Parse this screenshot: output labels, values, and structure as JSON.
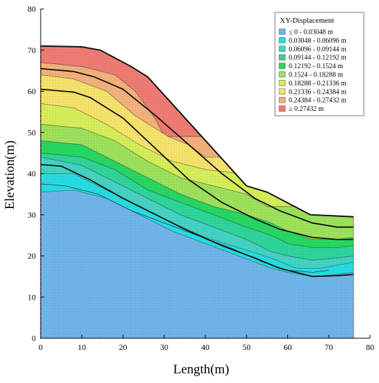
{
  "chart_data": {
    "type": "contour",
    "xlabel": "Length(m)",
    "ylabel": "Elevation(m)",
    "xlim": [
      0,
      80
    ],
    "ylim": [
      0,
      80
    ],
    "x_ticks": [
      0,
      10,
      20,
      30,
      40,
      50,
      60,
      70,
      80
    ],
    "y_ticks": [
      0,
      10,
      20,
      30,
      40,
      50,
      60,
      70,
      80
    ],
    "grid": false,
    "legend_position": "top-right",
    "legend": {
      "title": "XY-Displacement",
      "entries": [
        {
          "label": "≤ 0 - 0.03048 m",
          "color": "#6fb6ea"
        },
        {
          "label": "0.03048 - 0.06096 m",
          "color": "#27dde4"
        },
        {
          "label": "0.06096 - 0.09144 m",
          "color": "#45d3c4"
        },
        {
          "label": "0.09144 - 0.12192 m",
          "color": "#2fd59a"
        },
        {
          "label": "0.12192 - 0.1524 m",
          "color": "#27d861"
        },
        {
          "label": "0.1524 - 0.18288 m",
          "color": "#9ee25c"
        },
        {
          "label": "0.18288 - 0.21336 m",
          "color": "#d7ee5a"
        },
        {
          "label": "0.21336 - 0.24384 m",
          "color": "#f7e36c"
        },
        {
          "label": "0.24384 - 0.27432 m",
          "color": "#f3b27c"
        },
        {
          "label": "≥ 0.27432 m",
          "color": "#ef7c74"
        }
      ]
    },
    "slope_surface": [
      [
        0,
        71
      ],
      [
        10,
        70.8
      ],
      [
        14.5,
        70
      ],
      [
        22,
        66
      ],
      [
        26,
        63.5
      ],
      [
        50,
        37
      ],
      [
        55,
        35.5
      ],
      [
        65.5,
        30
      ],
      [
        76,
        29.5
      ],
      [
        76,
        0
      ],
      [
        0,
        0
      ]
    ],
    "bands": [
      {
        "level": 9,
        "boundary": [
          [
            0,
            67
          ],
          [
            10,
            66
          ],
          [
            18,
            64
          ],
          [
            23,
            60
          ],
          [
            28,
            53
          ],
          [
            30,
            49
          ]
        ]
      },
      {
        "level": 8,
        "boundary": [
          [
            0,
            64
          ],
          [
            8,
            63
          ],
          [
            16,
            60
          ],
          [
            23,
            54
          ],
          [
            31,
            49
          ],
          [
            36,
            47
          ],
          [
            40,
            44
          ]
        ]
      },
      {
        "level": 7,
        "boundary": [
          [
            0,
            57
          ],
          [
            8,
            56
          ],
          [
            16,
            52
          ],
          [
            24,
            47
          ],
          [
            32,
            43
          ],
          [
            40,
            41
          ],
          [
            48,
            40
          ],
          [
            54,
            37.5
          ]
        ]
      },
      {
        "level": 6,
        "boundary": [
          [
            0,
            52
          ],
          [
            10,
            51
          ],
          [
            18,
            48
          ],
          [
            26,
            43
          ],
          [
            34,
            39
          ],
          [
            42,
            37
          ],
          [
            50,
            35
          ],
          [
            55,
            32
          ],
          [
            58,
            32
          ]
        ]
      },
      {
        "level": 5,
        "boundary": [
          [
            0,
            48
          ],
          [
            10,
            47
          ],
          [
            18,
            43
          ],
          [
            26,
            39
          ],
          [
            34,
            35
          ],
          [
            42,
            32
          ],
          [
            50,
            30
          ],
          [
            56,
            28
          ],
          [
            60,
            26
          ],
          [
            66,
            24
          ],
          [
            72,
            24
          ],
          [
            76,
            24.5
          ]
        ]
      },
      {
        "level": 4,
        "boundary": [
          [
            0,
            45
          ],
          [
            10,
            44
          ],
          [
            18,
            41
          ],
          [
            26,
            36
          ],
          [
            34,
            33
          ],
          [
            42,
            30
          ],
          [
            50,
            27
          ],
          [
            56,
            25
          ],
          [
            60,
            23
          ],
          [
            66,
            22
          ],
          [
            72,
            22
          ],
          [
            76,
            22.5
          ]
        ]
      },
      {
        "level": 3,
        "boundary": [
          [
            0,
            44
          ],
          [
            10,
            42
          ],
          [
            18,
            38
          ],
          [
            26,
            34
          ],
          [
            34,
            30
          ],
          [
            42,
            27
          ],
          [
            50,
            24
          ],
          [
            56,
            21
          ],
          [
            60,
            20
          ],
          [
            66,
            19
          ],
          [
            72,
            19.5
          ],
          [
            76,
            20
          ]
        ]
      },
      {
        "level": 2,
        "boundary": [
          [
            0,
            40
          ],
          [
            8,
            40
          ],
          [
            16,
            36
          ],
          [
            24,
            32
          ],
          [
            32,
            28
          ],
          [
            40,
            24.5
          ],
          [
            48,
            22
          ],
          [
            56,
            19.5
          ],
          [
            62,
            17
          ],
          [
            68,
            17
          ],
          [
            76,
            18.5
          ]
        ]
      },
      {
        "level": 1,
        "boundary": [
          [
            0,
            35.5
          ],
          [
            8,
            36
          ],
          [
            16,
            34
          ],
          [
            24,
            30
          ],
          [
            32,
            26
          ],
          [
            40,
            23
          ],
          [
            48,
            20
          ],
          [
            56,
            17
          ],
          [
            60,
            16
          ],
          [
            66,
            15
          ],
          [
            72,
            15.5
          ],
          [
            76,
            16
          ]
        ]
      }
    ],
    "slip_surfaces": [
      [
        [
          0,
          65.5
        ],
        [
          8,
          64.8
        ],
        [
          13,
          63.5
        ],
        [
          20,
          60.5
        ],
        [
          28,
          54
        ],
        [
          36,
          47
        ],
        [
          44,
          40
        ],
        [
          52,
          34
        ],
        [
          58,
          31
        ],
        [
          66,
          28
        ],
        [
          72,
          27
        ],
        [
          76,
          27
        ]
      ],
      [
        [
          0,
          60.5
        ],
        [
          8,
          59.8
        ],
        [
          12,
          58.5
        ],
        [
          20,
          53.5
        ],
        [
          28,
          46
        ],
        [
          36,
          38.5
        ],
        [
          44,
          33
        ],
        [
          52,
          29
        ],
        [
          58,
          26.5
        ],
        [
          66,
          24.5
        ],
        [
          72,
          24
        ],
        [
          76,
          24
        ]
      ],
      [
        [
          0,
          42.2
        ],
        [
          5,
          41.8
        ],
        [
          12,
          38.5
        ],
        [
          20,
          34
        ],
        [
          28,
          30
        ],
        [
          36,
          26
        ],
        [
          44,
          22.5
        ],
        [
          52,
          19.5
        ],
        [
          58,
          17
        ],
        [
          66,
          15
        ],
        [
          72,
          15.2
        ],
        [
          76,
          15.5
        ]
      ]
    ],
    "thin_boundaries": [
      [
        [
          0,
          37.5
        ],
        [
          6,
          37
        ],
        [
          14,
          35
        ],
        [
          22,
          31
        ],
        [
          30,
          28
        ],
        [
          38,
          25
        ],
        [
          46,
          22
        ],
        [
          54,
          18.5
        ],
        [
          60,
          16.5
        ],
        [
          66,
          16
        ],
        [
          70,
          16.5
        ]
      ]
    ],
    "annotation": {
      "upper_band_edges": [
        [
          6.5,
          59
        ],
        [
          23,
          66
        ],
        [
          27,
          63.5
        ],
        [
          34,
          58
        ]
      ]
    }
  }
}
